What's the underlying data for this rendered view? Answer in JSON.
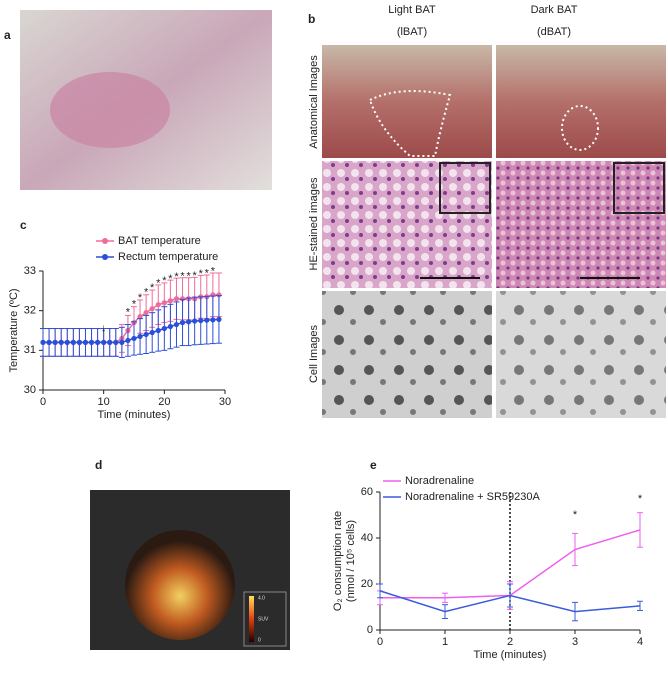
{
  "panels": {
    "a": "a",
    "b": "b",
    "c": "c",
    "d": "d",
    "e": "e"
  },
  "histology": {
    "columns": [
      {
        "name": "Light BAT",
        "abbr": "(lBAT)"
      },
      {
        "name": "Dark BAT",
        "abbr": "(dBAT)"
      }
    ],
    "rows": [
      "Anatomical Images",
      "HE-stained images",
      "Cell Images"
    ]
  },
  "pet_colorbar": [
    "4.0",
    "SUV",
    "0"
  ],
  "chart_data": [
    {
      "type": "line",
      "xlabel": "Time (minutes)",
      "ylabel": [
        "Temperature (ºC)"
      ],
      "markers": true,
      "xlim": [
        0,
        30
      ],
      "xticks": [
        0,
        10,
        20,
        30
      ],
      "ylim": [
        30,
        33
      ],
      "yticks": [
        30,
        31,
        32,
        33
      ],
      "x": [
        0,
        1,
        2,
        3,
        4,
        5,
        6,
        7,
        8,
        9,
        10,
        11,
        12,
        13,
        14,
        15,
        16,
        17,
        18,
        19,
        20,
        21,
        22,
        23,
        24,
        25,
        26,
        27,
        28,
        29
      ],
      "series": [
        {
          "name": "BAT temperature",
          "color": "#f06b9a",
          "values": [
            31.2,
            31.2,
            31.2,
            31.2,
            31.2,
            31.2,
            31.2,
            31.2,
            31.2,
            31.2,
            31.2,
            31.2,
            31.2,
            31.3,
            31.5,
            31.7,
            31.85,
            31.95,
            32.05,
            32.15,
            32.2,
            32.25,
            32.3,
            32.3,
            32.3,
            32.3,
            32.35,
            32.35,
            32.4,
            32.4
          ],
          "errors": [
            0.35,
            0.35,
            0.35,
            0.35,
            0.35,
            0.35,
            0.35,
            0.35,
            0.35,
            0.35,
            0.35,
            0.35,
            0.35,
            0.35,
            0.38,
            0.4,
            0.42,
            0.45,
            0.47,
            0.5,
            0.5,
            0.52,
            0.52,
            0.53,
            0.53,
            0.54,
            0.54,
            0.55,
            0.55,
            0.55
          ]
        },
        {
          "name": "Rectum temperature",
          "color": "#2a4fd8",
          "values": [
            31.2,
            31.2,
            31.2,
            31.2,
            31.2,
            31.2,
            31.2,
            31.2,
            31.2,
            31.2,
            31.2,
            31.2,
            31.2,
            31.2,
            31.25,
            31.3,
            31.35,
            31.4,
            31.45,
            31.5,
            31.55,
            31.6,
            31.65,
            31.7,
            31.72,
            31.74,
            31.75,
            31.76,
            31.77,
            31.78
          ],
          "errors": [
            0.35,
            0.35,
            0.35,
            0.35,
            0.35,
            0.35,
            0.35,
            0.35,
            0.35,
            0.35,
            0.35,
            0.35,
            0.35,
            0.38,
            0.4,
            0.42,
            0.45,
            0.48,
            0.5,
            0.52,
            0.55,
            0.56,
            0.57,
            0.58,
            0.6,
            0.6,
            0.6,
            0.6,
            0.6,
            0.6
          ]
        }
      ],
      "annotations": [
        {
          "text": "↓",
          "x": 10,
          "y": 31.55
        },
        {
          "text": "*",
          "x": 14,
          "y": 31.95
        },
        {
          "text": "*",
          "x": 15,
          "y": 32.15
        },
        {
          "text": "*",
          "x": 16,
          "y": 32.32
        },
        {
          "text": "*",
          "x": 17,
          "y": 32.45
        },
        {
          "text": "*",
          "x": 18,
          "y": 32.57
        },
        {
          "text": "*",
          "x": 19,
          "y": 32.68
        },
        {
          "text": "*",
          "x": 20,
          "y": 32.75
        },
        {
          "text": "*",
          "x": 21,
          "y": 32.8
        },
        {
          "text": "*",
          "x": 22,
          "y": 32.85
        },
        {
          "text": "*",
          "x": 23,
          "y": 32.86
        },
        {
          "text": "*",
          "x": 24,
          "y": 32.86
        },
        {
          "text": "*",
          "x": 25,
          "y": 32.87
        },
        {
          "text": "*",
          "x": 26,
          "y": 32.92
        },
        {
          "text": "*",
          "x": 27,
          "y": 32.93
        },
        {
          "text": "*",
          "x": 28,
          "y": 32.98
        }
      ]
    },
    {
      "type": "line",
      "xlabel": "Time (minutes)",
      "ylabel": [
        "O₂ consumption rate",
        "(nmol / 10⁵ cells)"
      ],
      "markers": false,
      "xlim": [
        0,
        4
      ],
      "xticks": [
        0,
        1,
        2,
        3,
        4
      ],
      "ylim": [
        0,
        60
      ],
      "yticks": [
        0,
        20,
        40,
        60
      ],
      "vline": 2,
      "x": [
        0,
        1,
        2,
        3,
        4
      ],
      "series": [
        {
          "name": "Noradrenaline",
          "color": "#ee5fee",
          "values": [
            14,
            14,
            15,
            35,
            43.5
          ],
          "errors": [
            3,
            2,
            6,
            7,
            7.5
          ]
        },
        {
          "name": "Noradrenaline + SR59230A",
          "color": "#3b5bdb",
          "values": [
            17,
            8,
            15,
            8,
            10.5
          ],
          "errors": [
            3,
            3,
            5,
            4,
            2
          ]
        }
      ],
      "annotations": [
        {
          "text": "*",
          "x": 3,
          "y": 50
        },
        {
          "text": "*",
          "x": 4,
          "y": 57
        }
      ]
    }
  ]
}
